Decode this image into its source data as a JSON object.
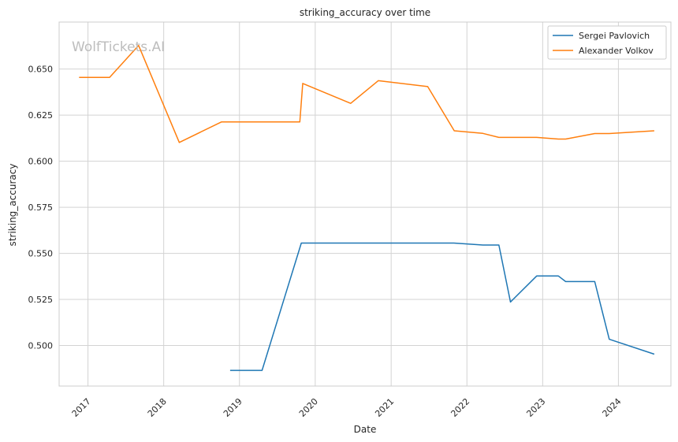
{
  "chart_data": {
    "type": "line",
    "title": "striking_accuracy over time",
    "xlabel": "Date",
    "ylabel": "striking_accuracy",
    "watermark": "WolfTickets.AI",
    "x_ticks": [
      "2017",
      "2018",
      "2019",
      "2020",
      "2021",
      "2022",
      "2023",
      "2024"
    ],
    "y_ticks": [
      "0.500",
      "0.525",
      "0.550",
      "0.575",
      "0.600",
      "0.625",
      "0.650"
    ],
    "xlim": [
      "2016-08-15",
      "2024-09-10"
    ],
    "ylim": [
      0.478,
      0.6755
    ],
    "grid": true,
    "legend_position": "top-right",
    "series": [
      {
        "name": "Sergei Pavlovich",
        "color": "#1f77b4",
        "points": [
          [
            "2018-11-17",
            0.4865
          ],
          [
            "2019-04-20",
            0.4865
          ],
          [
            "2019-10-26",
            0.5556
          ],
          [
            "2021-10-30",
            0.5556
          ],
          [
            "2022-03-19",
            0.5545
          ],
          [
            "2022-06-04",
            0.5545
          ],
          [
            "2022-07-30",
            0.5236
          ],
          [
            "2022-12-03",
            0.5377
          ],
          [
            "2023-03-18",
            0.5377
          ],
          [
            "2023-04-22",
            0.5347
          ],
          [
            "2023-09-09",
            0.5347
          ],
          [
            "2023-11-18",
            0.5034
          ],
          [
            "2024-06-22",
            0.4953
          ]
        ]
      },
      {
        "name": "Alexander Volkov",
        "color": "#ff7f0e",
        "points": [
          [
            "2016-11-19",
            0.6455
          ],
          [
            "2017-04-15",
            0.6455
          ],
          [
            "2017-09-02",
            0.6628
          ],
          [
            "2018-03-17",
            0.6102
          ],
          [
            "2018-10-06",
            0.6213
          ],
          [
            "2019-10-19",
            0.6213
          ],
          [
            "2019-11-02",
            0.6422
          ],
          [
            "2020-06-20",
            0.6314
          ],
          [
            "2020-10-31",
            0.6437
          ],
          [
            "2021-06-26",
            0.6405
          ],
          [
            "2021-11-01",
            0.6165
          ],
          [
            "2022-03-19",
            0.6151
          ],
          [
            "2022-06-04",
            0.6129
          ],
          [
            "2022-12-03",
            0.6129
          ],
          [
            "2023-03-18",
            0.612
          ],
          [
            "2023-04-22",
            0.612
          ],
          [
            "2023-09-09",
            0.615
          ],
          [
            "2023-11-18",
            0.615
          ],
          [
            "2024-06-22",
            0.6165
          ]
        ]
      }
    ]
  }
}
